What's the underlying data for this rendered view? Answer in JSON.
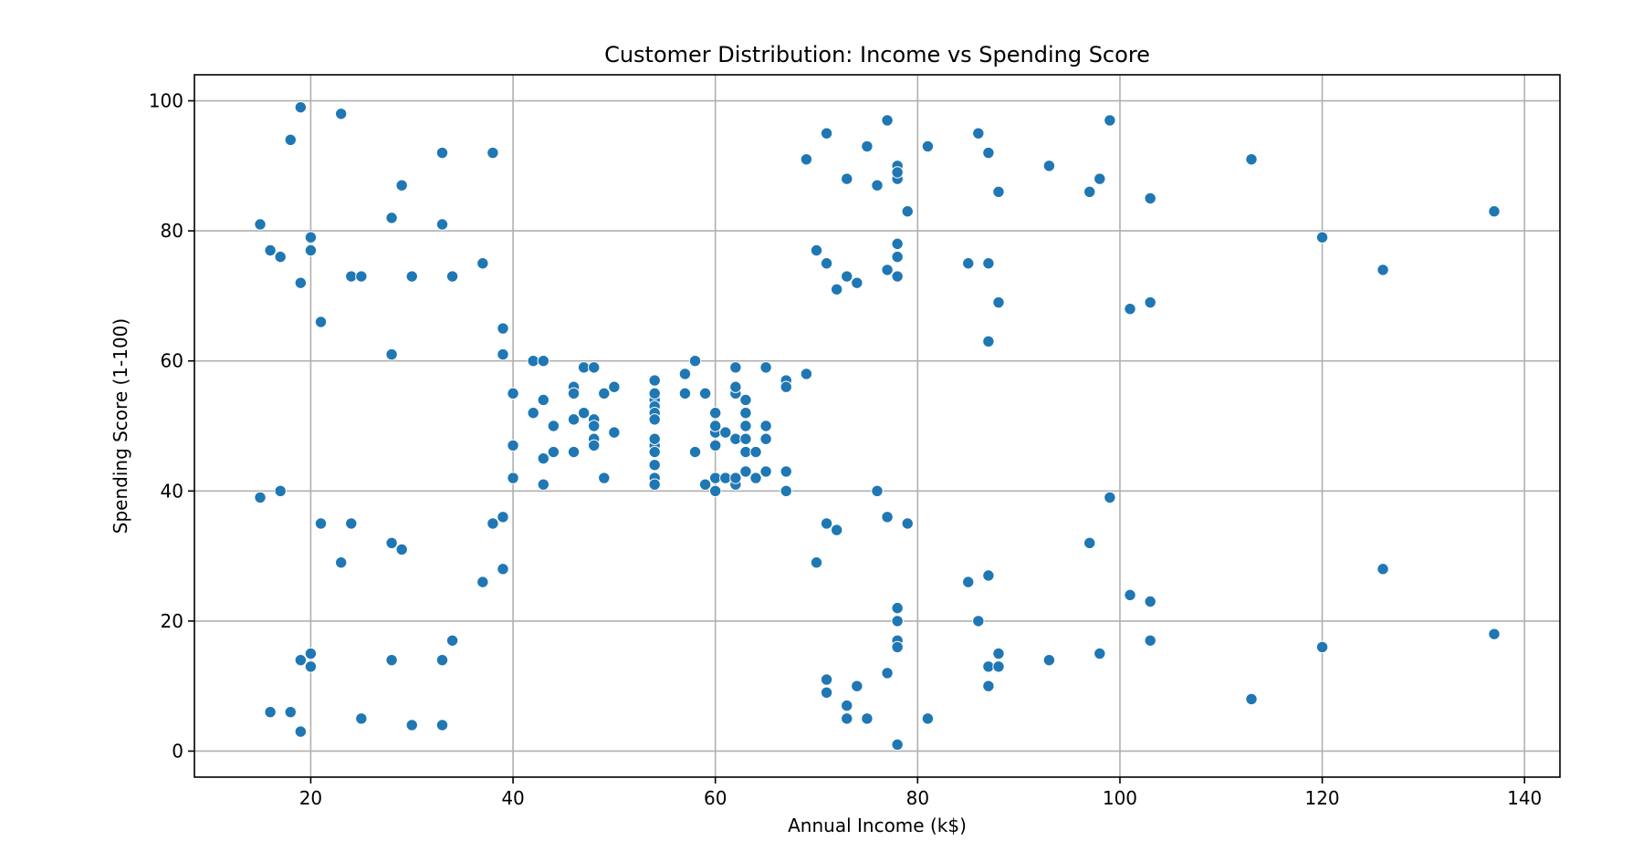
{
  "chart_data": {
    "type": "scatter",
    "title": "Customer Distribution: Income vs Spending Score",
    "xlabel": "Annual Income (k$)",
    "ylabel": "Spending Score (1-100)",
    "xlim": [
      8.5,
      143.5
    ],
    "ylim": [
      -4,
      104
    ],
    "xticks": [
      20,
      40,
      60,
      80,
      100,
      120,
      140
    ],
    "yticks": [
      0,
      20,
      40,
      60,
      80,
      100
    ],
    "grid": true,
    "legend": "none",
    "point_color": "#1f77b4",
    "points": [
      [
        15,
        39
      ],
      [
        15,
        81
      ],
      [
        16,
        6
      ],
      [
        16,
        77
      ],
      [
        17,
        40
      ],
      [
        17,
        76
      ],
      [
        18,
        6
      ],
      [
        18,
        94
      ],
      [
        19,
        3
      ],
      [
        19,
        72
      ],
      [
        19,
        14
      ],
      [
        19,
        99
      ],
      [
        20,
        15
      ],
      [
        20,
        77
      ],
      [
        20,
        13
      ],
      [
        20,
        79
      ],
      [
        21,
        35
      ],
      [
        21,
        66
      ],
      [
        23,
        29
      ],
      [
        23,
        98
      ],
      [
        24,
        35
      ],
      [
        24,
        73
      ],
      [
        25,
        5
      ],
      [
        25,
        73
      ],
      [
        28,
        14
      ],
      [
        28,
        82
      ],
      [
        28,
        32
      ],
      [
        28,
        61
      ],
      [
        29,
        31
      ],
      [
        29,
        87
      ],
      [
        30,
        4
      ],
      [
        30,
        73
      ],
      [
        33,
        4
      ],
      [
        33,
        92
      ],
      [
        33,
        14
      ],
      [
        33,
        81
      ],
      [
        34,
        17
      ],
      [
        34,
        73
      ],
      [
        37,
        26
      ],
      [
        37,
        75
      ],
      [
        38,
        35
      ],
      [
        38,
        92
      ],
      [
        39,
        36
      ],
      [
        39,
        61
      ],
      [
        39,
        28
      ],
      [
        39,
        65
      ],
      [
        40,
        55
      ],
      [
        40,
        47
      ],
      [
        40,
        42
      ],
      [
        42,
        52
      ],
      [
        42,
        60
      ],
      [
        43,
        54
      ],
      [
        43,
        60
      ],
      [
        43,
        45
      ],
      [
        43,
        41
      ],
      [
        44,
        50
      ],
      [
        44,
        46
      ],
      [
        46,
        51
      ],
      [
        46,
        46
      ],
      [
        46,
        56
      ],
      [
        46,
        55
      ],
      [
        47,
        52
      ],
      [
        47,
        59
      ],
      [
        48,
        51
      ],
      [
        48,
        59
      ],
      [
        48,
        50
      ],
      [
        48,
        48
      ],
      [
        48,
        47
      ],
      [
        49,
        55
      ],
      [
        49,
        42
      ],
      [
        50,
        49
      ],
      [
        50,
        56
      ],
      [
        54,
        47
      ],
      [
        54,
        54
      ],
      [
        54,
        53
      ],
      [
        54,
        48
      ],
      [
        54,
        52
      ],
      [
        54,
        42
      ],
      [
        54,
        51
      ],
      [
        54,
        55
      ],
      [
        54,
        41
      ],
      [
        54,
        44
      ],
      [
        54,
        57
      ],
      [
        54,
        46
      ],
      [
        57,
        58
      ],
      [
        57,
        55
      ],
      [
        58,
        60
      ],
      [
        58,
        46
      ],
      [
        59,
        55
      ],
      [
        59,
        41
      ],
      [
        60,
        49
      ],
      [
        60,
        40
      ],
      [
        60,
        42
      ],
      [
        60,
        52
      ],
      [
        60,
        47
      ],
      [
        60,
        50
      ],
      [
        61,
        42
      ],
      [
        61,
        49
      ],
      [
        62,
        41
      ],
      [
        62,
        48
      ],
      [
        62,
        59
      ],
      [
        62,
        55
      ],
      [
        62,
        56
      ],
      [
        62,
        42
      ],
      [
        63,
        50
      ],
      [
        63,
        46
      ],
      [
        63,
        43
      ],
      [
        63,
        48
      ],
      [
        63,
        52
      ],
      [
        63,
        54
      ],
      [
        64,
        42
      ],
      [
        64,
        46
      ],
      [
        65,
        48
      ],
      [
        65,
        50
      ],
      [
        65,
        43
      ],
      [
        65,
        59
      ],
      [
        67,
        43
      ],
      [
        67,
        57
      ],
      [
        67,
        56
      ],
      [
        67,
        40
      ],
      [
        69,
        58
      ],
      [
        69,
        91
      ],
      [
        70,
        29
      ],
      [
        70,
        77
      ],
      [
        71,
        35
      ],
      [
        71,
        95
      ],
      [
        71,
        11
      ],
      [
        71,
        75
      ],
      [
        71,
        9
      ],
      [
        72,
        34
      ],
      [
        72,
        71
      ],
      [
        73,
        5
      ],
      [
        73,
        88
      ],
      [
        73,
        7
      ],
      [
        73,
        73
      ],
      [
        74,
        10
      ],
      [
        74,
        72
      ],
      [
        75,
        5
      ],
      [
        75,
        93
      ],
      [
        76,
        40
      ],
      [
        76,
        87
      ],
      [
        77,
        12
      ],
      [
        77,
        97
      ],
      [
        77,
        36
      ],
      [
        77,
        74
      ],
      [
        78,
        22
      ],
      [
        78,
        90
      ],
      [
        78,
        17
      ],
      [
        78,
        88
      ],
      [
        78,
        20
      ],
      [
        78,
        76
      ],
      [
        78,
        16
      ],
      [
        78,
        89
      ],
      [
        78,
        1
      ],
      [
        78,
        78
      ],
      [
        78,
        73
      ],
      [
        79,
        35
      ],
      [
        79,
        83
      ],
      [
        81,
        5
      ],
      [
        81,
        93
      ],
      [
        85,
        26
      ],
      [
        85,
        75
      ],
      [
        86,
        20
      ],
      [
        86,
        95
      ],
      [
        87,
        27
      ],
      [
        87,
        63
      ],
      [
        87,
        13
      ],
      [
        87,
        75
      ],
      [
        87,
        10
      ],
      [
        87,
        92
      ],
      [
        88,
        13
      ],
      [
        88,
        86
      ],
      [
        88,
        15
      ],
      [
        88,
        69
      ],
      [
        93,
        14
      ],
      [
        93,
        90
      ],
      [
        97,
        32
      ],
      [
        97,
        86
      ],
      [
        98,
        15
      ],
      [
        98,
        88
      ],
      [
        99,
        39
      ],
      [
        99,
        97
      ],
      [
        101,
        24
      ],
      [
        101,
        68
      ],
      [
        103,
        17
      ],
      [
        103,
        85
      ],
      [
        103,
        23
      ],
      [
        103,
        69
      ],
      [
        113,
        8
      ],
      [
        113,
        91
      ],
      [
        120,
        16
      ],
      [
        120,
        79
      ],
      [
        126,
        28
      ],
      [
        126,
        74
      ],
      [
        137,
        18
      ],
      [
        137,
        83
      ]
    ]
  }
}
